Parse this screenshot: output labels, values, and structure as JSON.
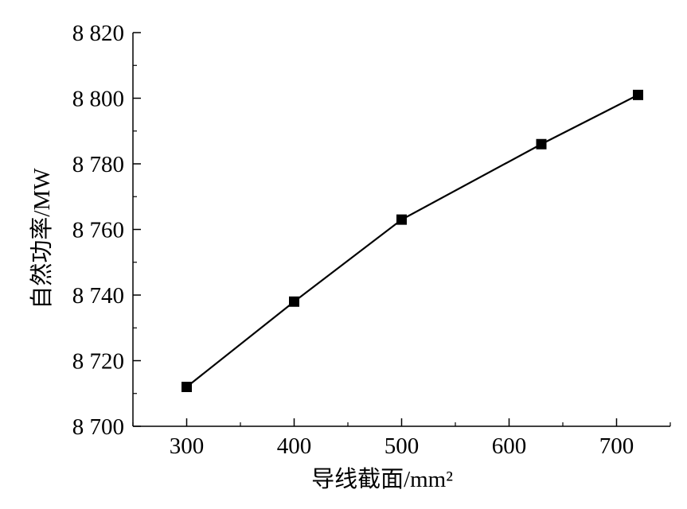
{
  "chart_data": {
    "type": "line",
    "title": "",
    "xlabel": "导线截面/mm²",
    "ylabel": "自然功率/MW",
    "xlim": [
      250,
      750
    ],
    "ylim": [
      8700,
      8820
    ],
    "xticks": [
      300,
      400,
      500,
      600,
      700
    ],
    "yticks": [
      8700,
      8720,
      8740,
      8760,
      8780,
      8800,
      8820
    ],
    "xtick_labels": [
      "300",
      "400",
      "500",
      "600",
      "700"
    ],
    "ytick_labels": [
      "8 700",
      "8 720",
      "8 740",
      "8 760",
      "8 780",
      "8 800",
      "8 820"
    ],
    "grid": false,
    "series": [
      {
        "marker": "square",
        "color": "#000000",
        "x": [
          300,
          400,
          500,
          630,
          720
        ],
        "y": [
          8712,
          8738,
          8763,
          8786,
          8801
        ]
      }
    ]
  }
}
